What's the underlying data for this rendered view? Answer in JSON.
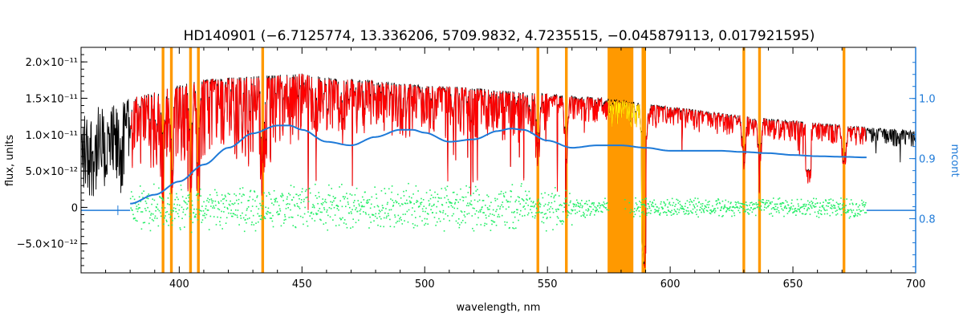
{
  "chart_data": {
    "type": "line",
    "title": "HD140901    (−6.7125774, 13.336206, 5709.9832, 4.7235515, −0.045879113, 0.017921595)",
    "xlabel": "wavelength, nm",
    "ylabel_left": "flux, units",
    "ylabel_right": "mcont",
    "xlim": [
      360,
      700
    ],
    "ylim_left": [
      -9e-12,
      2.2e-11
    ],
    "ylim_right": [
      0.71,
      1.085
    ],
    "x_ticks": [
      {
        "value": 400,
        "label": "400"
      },
      {
        "value": 450,
        "label": "450"
      },
      {
        "value": 500,
        "label": "500"
      },
      {
        "value": 550,
        "label": "550"
      },
      {
        "value": 600,
        "label": "600"
      },
      {
        "value": 650,
        "label": "650"
      },
      {
        "value": 700,
        "label": "700"
      }
    ],
    "y_ticks_left": [
      {
        "value": 2e-11,
        "label": "2.0×10⁻¹¹"
      },
      {
        "value": 1.5e-11,
        "label": "1.5×10⁻¹¹"
      },
      {
        "value": 1e-11,
        "label": "1.0×10⁻¹¹"
      },
      {
        "value": 5e-12,
        "label": "5.0×10⁻¹²"
      },
      {
        "value": 0,
        "label": "0"
      },
      {
        "value": -5e-12,
        "label": "−5.0×10⁻¹²"
      }
    ],
    "y_ticks_right": [
      {
        "value": 1.0,
        "label": "1.0"
      },
      {
        "value": 0.9,
        "label": "0.9"
      },
      {
        "value": 0.8,
        "label": "0.8"
      }
    ],
    "masked_lines_nm": [
      393.4,
      396.8,
      404.6,
      407.8,
      434.0,
      546.1,
      557.7,
      588.9,
      589.6,
      630.0,
      636.4,
      670.8
    ],
    "masked_bands_nm": [
      [
        574.5,
        585.0
      ]
    ],
    "continuum_mcont": {
      "x": [
        380,
        390,
        400,
        410,
        420,
        430,
        440,
        445,
        450,
        460,
        470,
        480,
        490,
        495,
        500,
        510,
        520,
        530,
        535,
        540,
        550,
        560,
        570,
        580,
        590,
        600,
        610,
        620,
        630,
        640,
        650,
        660,
        670,
        680
      ],
      "values": [
        0.825,
        0.84,
        0.862,
        0.89,
        0.918,
        0.942,
        0.955,
        0.955,
        0.948,
        0.928,
        0.922,
        0.936,
        0.948,
        0.948,
        0.943,
        0.928,
        0.932,
        0.946,
        0.95,
        0.948,
        0.93,
        0.918,
        0.922,
        0.922,
        0.918,
        0.913,
        0.913,
        0.913,
        0.911,
        0.909,
        0.906,
        0.904,
        0.903,
        0.902
      ]
    },
    "continuum_extension_mcont": {
      "x": [
        360,
        380,
        680,
        700
      ],
      "values": [
        0.814,
        0.814,
        0.814,
        0.814
      ]
    },
    "observed_envelope": {
      "x": [
        360,
        375,
        380,
        390,
        400,
        410,
        420,
        430,
        440,
        450,
        460,
        470,
        480,
        490,
        500,
        510,
        520,
        530,
        540,
        550,
        560,
        570,
        575,
        585,
        600,
        620,
        640,
        660,
        680,
        700
      ],
      "values": [
        1.35e-11,
        1.42e-11,
        1.5e-11,
        1.58e-11,
        1.68e-11,
        1.75e-11,
        1.78e-11,
        1.8e-11,
        1.82e-11,
        1.84e-11,
        1.78e-11,
        1.76e-11,
        1.74e-11,
        1.7e-11,
        1.68e-11,
        1.66e-11,
        1.64e-11,
        1.61e-11,
        1.58e-11,
        1.56e-11,
        1.53e-11,
        1.51e-11,
        1.5e-11,
        1.45e-11,
        1.38e-11,
        1.3e-11,
        1.22e-11,
        1.16e-11,
        1.1e-11,
        1.05e-11
      ]
    },
    "residuals_range": [
      -5.5e-12,
      4.5e-12
    ],
    "colors": {
      "observed": "#000000",
      "model": "#ff0000",
      "continuum": "#1e7ad8",
      "residuals": "#22ee66",
      "mask": "#ff9900",
      "masked_model": "#ffee00",
      "right_axis": "#1e7ad8"
    }
  }
}
